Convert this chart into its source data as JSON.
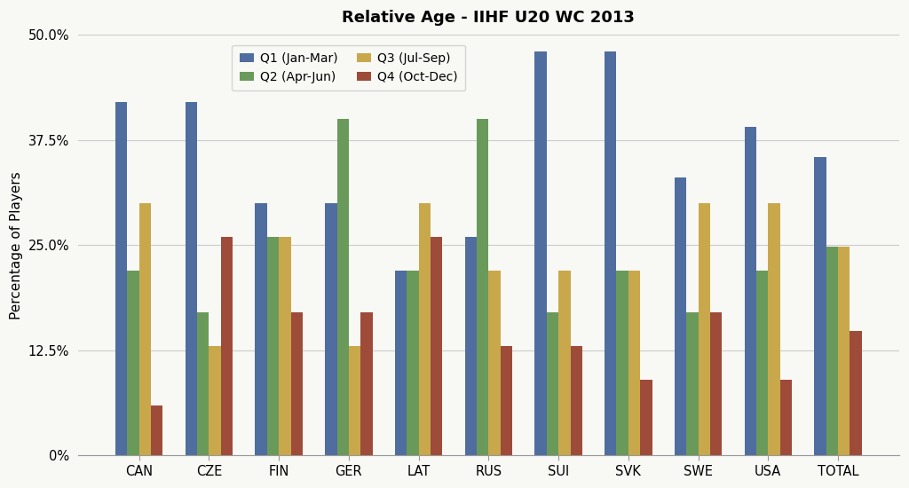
{
  "title": "Relative Age - IIHF U20 WC 2013",
  "ylabel": "Percentage of Players",
  "teams": [
    "CAN",
    "CZE",
    "FIN",
    "GER",
    "LAT",
    "RUS",
    "SUI",
    "SVK",
    "SWE",
    "USA",
    "TOTAL"
  ],
  "quartiles": [
    "Q1 (Jan-Mar)",
    "Q2 (Apr-Jun)",
    "Q3 (Jul-Sep)",
    "Q4 (Oct-Dec)"
  ],
  "colors": [
    "#4F6D9F",
    "#6A9A5A",
    "#C9A84C",
    "#9E4B3A"
  ],
  "data": {
    "Q1": [
      0.42,
      0.42,
      0.3,
      0.3,
      0.22,
      0.26,
      0.48,
      0.48,
      0.33,
      0.39,
      0.355
    ],
    "Q2": [
      0.22,
      0.17,
      0.26,
      0.4,
      0.22,
      0.4,
      0.17,
      0.22,
      0.17,
      0.22,
      0.248
    ],
    "Q3": [
      0.3,
      0.13,
      0.26,
      0.13,
      0.3,
      0.22,
      0.22,
      0.22,
      0.3,
      0.3,
      0.248
    ],
    "Q4": [
      0.06,
      0.26,
      0.17,
      0.17,
      0.26,
      0.13,
      0.13,
      0.09,
      0.17,
      0.09,
      0.148
    ]
  },
  "ylim": [
    0,
    0.5
  ],
  "yticks": [
    0.0,
    0.125,
    0.25,
    0.375,
    0.5
  ],
  "ytick_labels": [
    "0%",
    "12.5%",
    "25.0%",
    "37.5%",
    "50.0%"
  ],
  "bar_width": 0.17,
  "background_color": "#f8f8f5",
  "grid_color": "#cccccc",
  "title_fontsize": 13,
  "label_fontsize": 11
}
